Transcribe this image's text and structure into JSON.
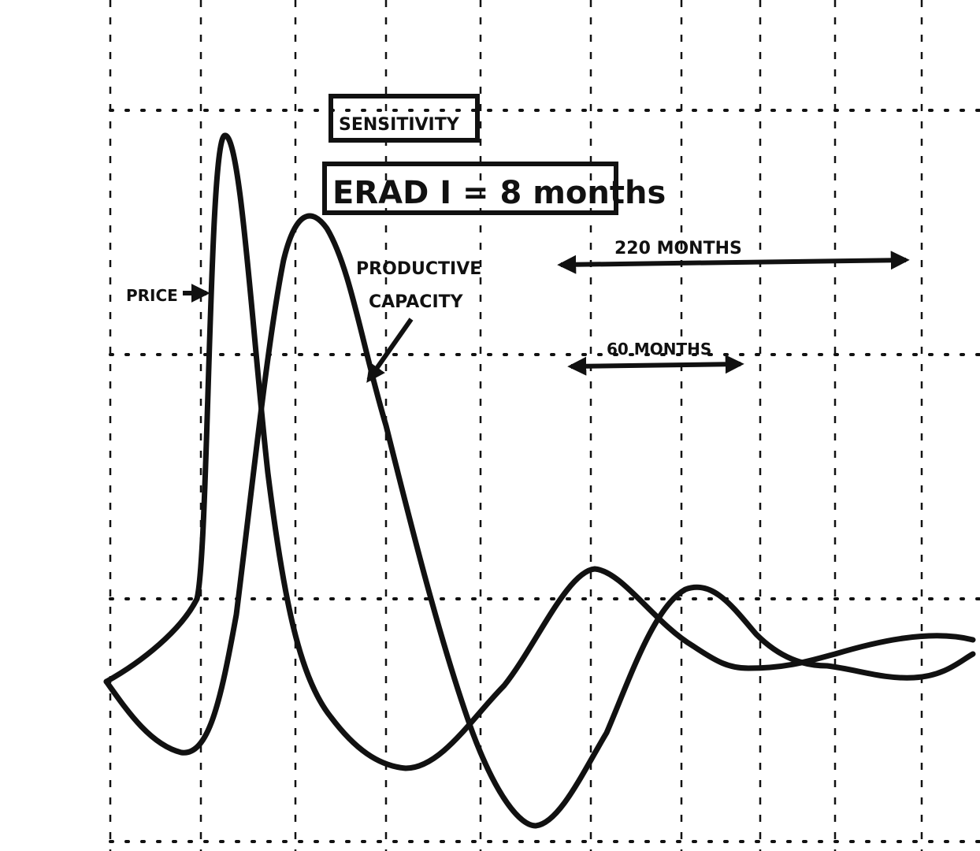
{
  "annotations": {
    "box_label": "SENSITIVITY",
    "delay": "ERAD I = 8 months",
    "price": "PRICE",
    "capacity_line1": "PRODUCTIVE",
    "capacity_line2": "CAPACITY",
    "period_long": "220 MONTHS",
    "period_short": "60 MONTHS"
  }
}
